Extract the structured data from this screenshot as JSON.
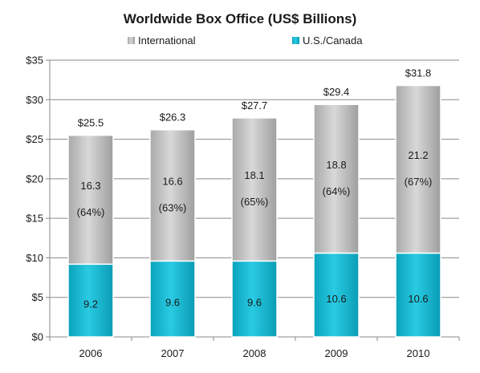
{
  "chart_data": {
    "type": "bar",
    "stacked": true,
    "title": "Worldwide Box Office (US$ Billions)",
    "xlabel": "",
    "ylabel": "",
    "categories": [
      "2006",
      "2007",
      "2008",
      "2009",
      "2010"
    ],
    "ylim": [
      0,
      35
    ],
    "y_ticks": [
      0,
      5,
      10,
      15,
      20,
      25,
      30,
      35
    ],
    "y_tick_labels": [
      "$0",
      "$5",
      "$10",
      "$15",
      "$20",
      "$25",
      "$30",
      "$35"
    ],
    "grid": true,
    "legend_position": "top",
    "series": [
      {
        "name": "U.S./Canada",
        "color": "#1fc0d9",
        "values": [
          9.2,
          9.6,
          9.6,
          10.6,
          10.6
        ],
        "labels": [
          "9.2",
          "9.6",
          "9.6",
          "10.6",
          "10.6"
        ]
      },
      {
        "name": "International",
        "color": "#c8c8c8",
        "values": [
          16.3,
          16.6,
          18.1,
          18.8,
          21.2
        ],
        "labels": [
          "16.3",
          "16.6",
          "18.1",
          "18.8",
          "21.2"
        ],
        "share_labels": [
          "(64%)",
          "(63%)",
          "(65%)",
          "(64%)",
          "(67%)"
        ]
      }
    ],
    "totals": [
      25.5,
      26.3,
      27.7,
      29.4,
      31.8
    ],
    "total_labels": [
      "$25.5",
      "$26.3",
      "$27.7",
      "$29.4",
      "$31.8"
    ]
  }
}
